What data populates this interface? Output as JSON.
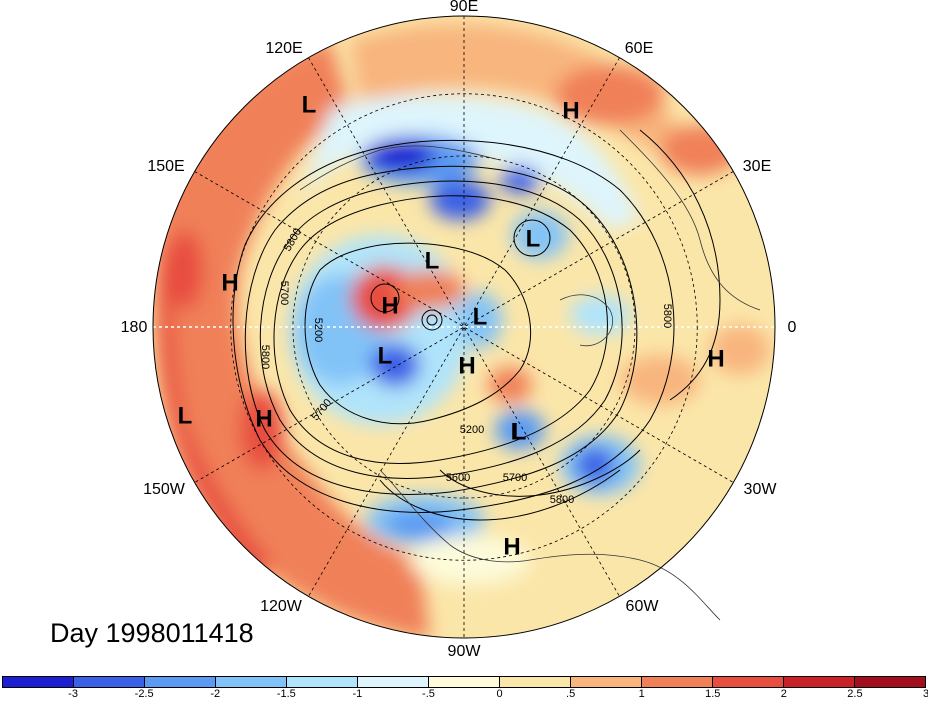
{
  "title": "Day 1998011418",
  "lon_labels": {
    "lon_90e": "90E",
    "lon_60e": "60E",
    "lon_30e": "30E",
    "lon_0": "0",
    "lon_30w": "30W",
    "lon_60w": "60W",
    "lon_90w": "90W",
    "lon_120w": "120W",
    "lon_150w": "150W",
    "lon_180": "180",
    "lon_150e": "150E",
    "lon_120e": "120E"
  },
  "pressure_centers": [
    "L",
    "H",
    "H",
    "L",
    "L",
    "H",
    "L",
    "L",
    "H",
    "H",
    "L",
    "H",
    "L",
    "L",
    "H",
    "H"
  ],
  "contour_labels": [
    "5800",
    "5700",
    "5200",
    "5800",
    "5700",
    "5200",
    "5600",
    "5700",
    "5800",
    "5800"
  ],
  "colorbar": {
    "colors": [
      "#1c1ed1",
      "#3a60e6",
      "#5a9af2",
      "#82c3f7",
      "#b0e4fb",
      "#def5fd",
      "#fdfbda",
      "#fbe6a9",
      "#f8b57e",
      "#f08058",
      "#e84e40",
      "#c82126",
      "#a30e1f"
    ],
    "ticks": [
      "-3",
      "-2.5",
      "-2",
      "-1.5",
      "-1",
      "-.5",
      "0",
      ".5",
      "1",
      "1.5",
      "2",
      "2.5",
      "3"
    ]
  }
}
